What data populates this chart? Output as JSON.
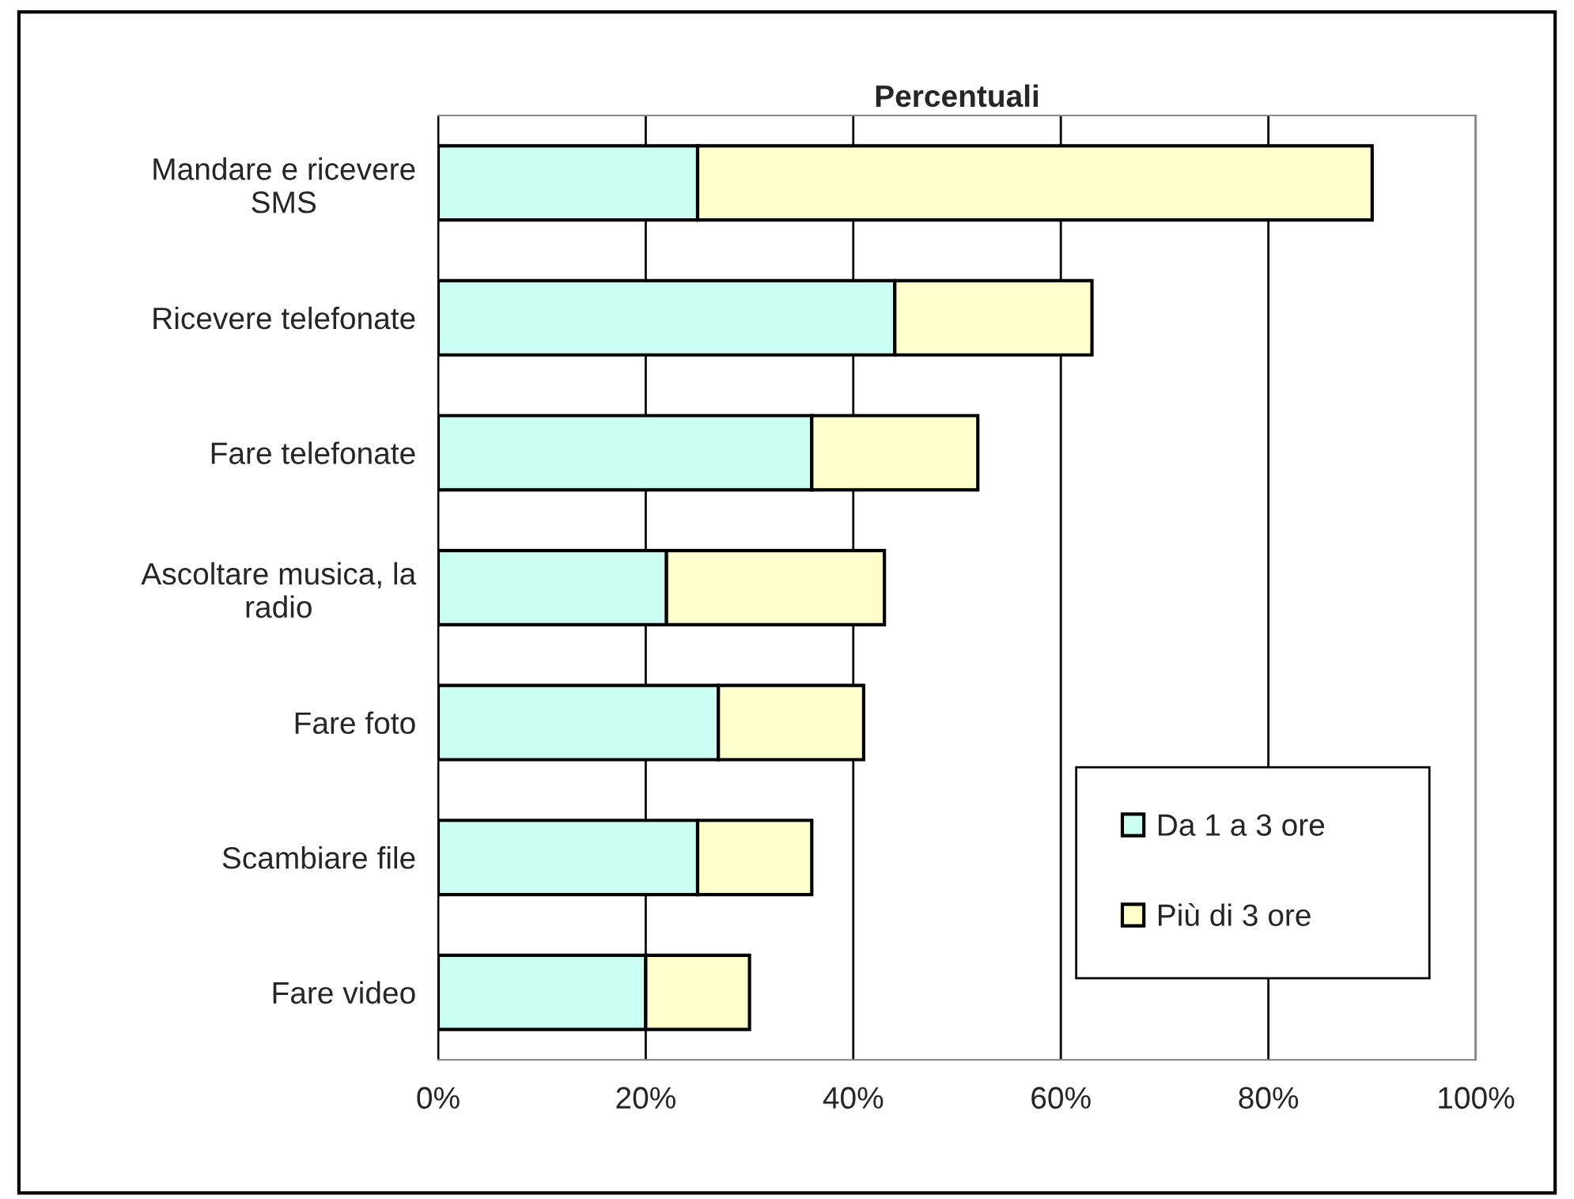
{
  "chart_data": {
    "type": "bar",
    "orientation": "horizontal",
    "stacked": true,
    "title": "Percentuali",
    "categories": [
      "Mandare e ricevere\nSMS",
      "Ricevere telefonate",
      "Fare telefonate",
      "Ascoltare musica, la\nradio",
      "Fare foto",
      "Scambiare file",
      "Fare video"
    ],
    "series": [
      {
        "name": "Da 1 a 3 ore",
        "color": "#ccfff4",
        "values": [
          25,
          44,
          36,
          22,
          27,
          25,
          20
        ]
      },
      {
        "name": "Più di 3 ore",
        "color": "#ffffcc",
        "values": [
          65,
          19,
          16,
          21,
          14,
          11,
          10
        ]
      }
    ],
    "xlim": [
      0,
      100
    ],
    "xticks": [
      {
        "value": 0,
        "label": "0%"
      },
      {
        "value": 20,
        "label": "20%"
      },
      {
        "value": 40,
        "label": "40%"
      },
      {
        "value": 60,
        "label": "60%"
      },
      {
        "value": 80,
        "label": "80%"
      },
      {
        "value": 100,
        "label": "100%"
      }
    ],
    "grid": "x",
    "legend": "bottom right"
  }
}
